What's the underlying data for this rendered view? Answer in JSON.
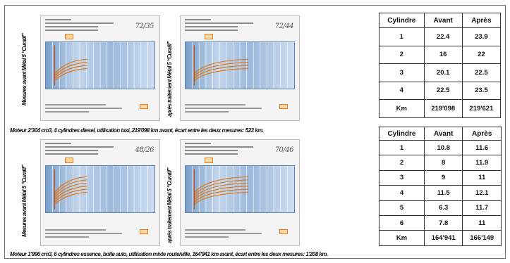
{
  "cards": [
    {
      "note": "72/35",
      "label": "Mesures avant Métal 5 “Curatif”"
    },
    {
      "note": "72/44",
      "label": "après traitement Métal 5 “Curatif”"
    },
    {
      "note": "48/26",
      "label": "Mesures avant Métal 5 “Curatif”"
    },
    {
      "note": "70/46",
      "label": "après traitement Métal 5 “Curatif”"
    }
  ],
  "captions": {
    "diesel": "Moteur 2'304 cm3, 4 cylindres diesel, utilisation taxi, 219'098 km avant, écart entre les deux mesures: 523 km.",
    "essence": "Moteur 1'996 cm3, 6 cylindres essence, boîte auto, utilisation mixte route/ville, 164'941 km avant, écart entre les deux mesures: 1'208 km."
  },
  "tables": [
    {
      "headers": [
        "Cylindre",
        "Avant",
        "Après"
      ],
      "rows": [
        [
          "1",
          "22.4",
          "23.9"
        ],
        [
          "2",
          "16",
          "22"
        ],
        [
          "3",
          "20.1",
          "22.5"
        ],
        [
          "4",
          "22.5",
          "23.5"
        ],
        [
          "Km",
          "219'098",
          "219'621"
        ]
      ]
    },
    {
      "headers": [
        "Cylindre",
        "Avant",
        "Après"
      ],
      "rows": [
        [
          "1",
          "10.8",
          "11.6"
        ],
        [
          "2",
          "8",
          "11.9"
        ],
        [
          "3",
          "9",
          "11"
        ],
        [
          "4",
          "11.5",
          "12.1"
        ],
        [
          "5",
          "6.3",
          "11.7"
        ],
        [
          "6",
          "7.8",
          "11"
        ],
        [
          "Km",
          "164'941",
          "166'149"
        ]
      ]
    }
  ]
}
